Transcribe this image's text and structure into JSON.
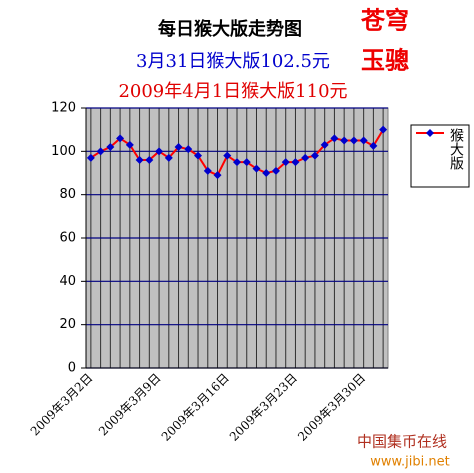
{
  "chart_data": {
    "type": "line",
    "title": "每日猴大版走势图",
    "subtitle": "3月31日猴大版102.5元",
    "subtitle2": "2009年4月1日猴大版110元",
    "brand": [
      "苍穹",
      "玉骢"
    ],
    "watermark": [
      "中国集币在线",
      "www.jibi.net"
    ],
    "categories": [
      "2009年3月2日",
      null,
      null,
      null,
      null,
      null,
      null,
      "2009年3月9日",
      null,
      null,
      null,
      null,
      null,
      null,
      "2009年3月16日",
      null,
      null,
      null,
      null,
      null,
      null,
      "2009年3月23日",
      null,
      null,
      null,
      null,
      null,
      null,
      "2009年3月30日",
      null,
      null
    ],
    "series": [
      {
        "name": "猴大版",
        "color": "#ff0000",
        "marker_color": "#0000cc",
        "values": [
          97,
          100,
          102,
          106,
          103,
          96,
          96,
          100,
          97,
          102,
          101,
          98,
          91,
          89,
          98,
          95,
          95,
          92,
          90,
          91,
          95,
          95,
          97,
          98,
          103,
          106,
          105,
          105,
          105,
          102.5,
          110
        ]
      }
    ],
    "ylim": [
      0,
      120
    ],
    "yticks": [
      0,
      20,
      40,
      60,
      80,
      100,
      120
    ],
    "grid": true,
    "plot_background": "#c0c0c0",
    "legend": "right"
  }
}
